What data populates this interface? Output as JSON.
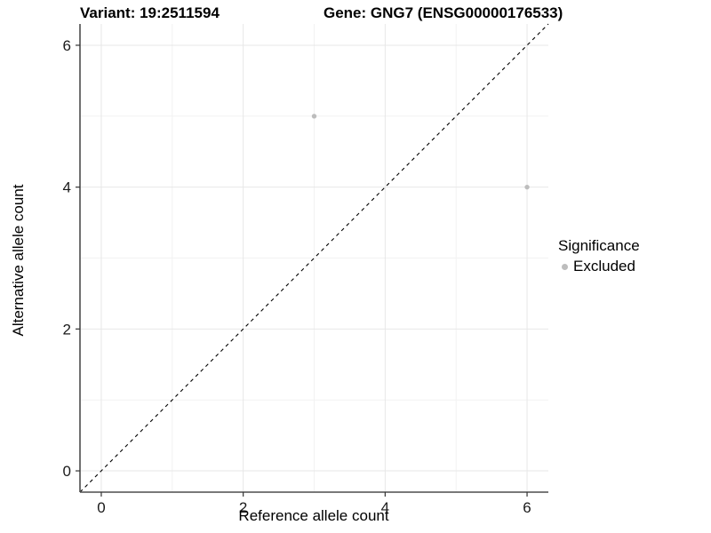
{
  "header": {
    "variant_title": "Variant: 19:2511594",
    "gene_title": "Gene: GNG7 (ENSG00000176533)"
  },
  "chart_data": {
    "type": "scatter",
    "title": "Variant: 19:2511594  |  Gene: GNG7 (ENSG00000176533)",
    "xlabel": "Reference allele count",
    "ylabel": "Alternative allele count",
    "xlim": [
      -0.3,
      6.3
    ],
    "ylim": [
      -0.3,
      6.3
    ],
    "xticks": [
      0,
      2,
      4,
      6
    ],
    "yticks": [
      0,
      2,
      4,
      6
    ],
    "xminor": [
      1,
      3,
      5
    ],
    "yminor": [
      1,
      3,
      5
    ],
    "grid": true,
    "reference_line": {
      "type": "identity",
      "from": [
        -0.3,
        -0.3
      ],
      "to": [
        6.3,
        6.3
      ],
      "style": "dashed",
      "color": "#000000"
    },
    "series": [
      {
        "name": "Excluded",
        "marker": "circle",
        "color": "#bdbdbd",
        "points": [
          [
            3,
            5
          ],
          [
            6,
            4
          ]
        ]
      }
    ],
    "legend": {
      "title": "Significance",
      "position": "right",
      "items": [
        {
          "label": "Excluded",
          "color": "#bdbdbd"
        }
      ]
    }
  },
  "colors": {
    "background": "#ffffff",
    "grid_major": "#e7e7e7",
    "grid_minor": "#f2f2f2",
    "axis_line": "#4d4d4d",
    "tick_mark": "#333333",
    "tick_label": "#1a1a1a",
    "point": "#bdbdbd"
  }
}
